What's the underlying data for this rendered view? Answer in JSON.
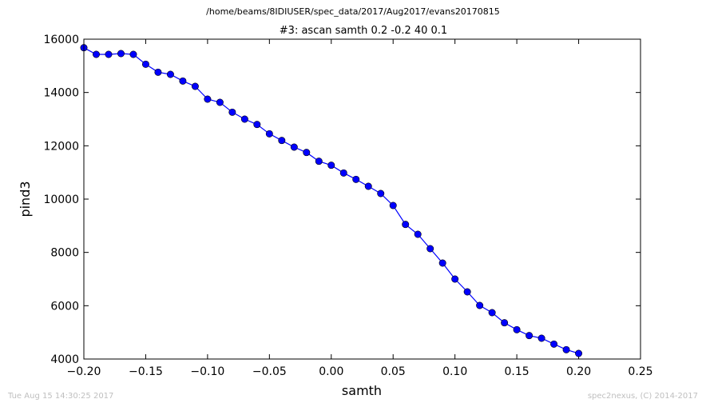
{
  "suptitle": "/home/beams/8IDIUSER/spec_data/2017/Aug2017/evans20170815",
  "footer": {
    "left": "Tue Aug 15 14:30:25 2017",
    "right": "spec2nexus, (C) 2014-2017"
  },
  "chart_data": {
    "type": "line",
    "title": "#3: ascan  samth 0.2 -0.2  40 0.1",
    "xlabel": "samth",
    "ylabel": "pind3",
    "xlim": [
      -0.2,
      0.25
    ],
    "ylim": [
      4000,
      16000
    ],
    "xticks": [
      -0.2,
      -0.15,
      -0.1,
      -0.05,
      0.0,
      0.05,
      0.1,
      0.15,
      0.2,
      0.25
    ],
    "xtick_labels": [
      "−0.20",
      "−0.15",
      "−0.10",
      "−0.05",
      "0.00",
      "0.05",
      "0.10",
      "0.15",
      "0.20",
      "0.25"
    ],
    "yticks": [
      4000,
      6000,
      8000,
      10000,
      12000,
      14000,
      16000
    ],
    "ytick_labels": [
      "4000",
      "6000",
      "8000",
      "10000",
      "12000",
      "14000",
      "16000"
    ],
    "grid": false,
    "color": "#0000ff",
    "marker": "circle",
    "x": [
      -0.2,
      -0.19,
      -0.18,
      -0.17,
      -0.16,
      -0.15,
      -0.14,
      -0.13,
      -0.12,
      -0.11,
      -0.1,
      -0.09,
      -0.08,
      -0.07,
      -0.06,
      -0.05,
      -0.04,
      -0.03,
      -0.02,
      -0.01,
      0.0,
      0.01,
      0.02,
      0.03,
      0.04,
      0.05,
      0.06,
      0.07,
      0.08,
      0.09,
      0.1,
      0.11,
      0.12,
      0.13,
      0.14,
      0.15,
      0.16,
      0.17,
      0.18,
      0.19,
      0.2
    ],
    "y": [
      15680,
      15430,
      15430,
      15460,
      15430,
      15060,
      14760,
      14680,
      14430,
      14230,
      13750,
      13630,
      13260,
      13000,
      12800,
      12450,
      12200,
      11950,
      11750,
      11420,
      11270,
      10980,
      10740,
      10480,
      10210,
      9760,
      9050,
      8680,
      8140,
      7600,
      7000,
      6520,
      6010,
      5740,
      5360,
      5100,
      4880,
      4780,
      4560,
      4350,
      4210
    ]
  }
}
